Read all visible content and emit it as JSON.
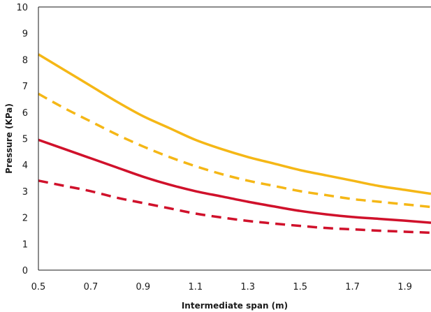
{
  "chart_data": {
    "type": "line",
    "title": "",
    "xlabel": "Intermediate span (m)",
    "ylabel": "Pressure (KPa)",
    "xlim": [
      0.5,
      2.0
    ],
    "ylim": [
      0,
      10
    ],
    "x_ticks": [
      "0.5",
      "0.7",
      "0.9",
      "1.1",
      "1.3",
      "1.5",
      "1.7",
      "1.9"
    ],
    "y_ticks": [
      "0",
      "1",
      "2",
      "3",
      "4",
      "5",
      "6",
      "7",
      "8",
      "9",
      "10"
    ],
    "grid": false,
    "series": [
      {
        "color": "#F5B716",
        "style": "solid",
        "x": [
          0.5,
          0.6,
          0.7,
          0.8,
          0.9,
          1.0,
          1.1,
          1.2,
          1.3,
          1.4,
          1.5,
          1.6,
          1.7,
          1.8,
          1.9,
          2.0
        ],
        "values": [
          8.2,
          7.6,
          7.0,
          6.4,
          5.85,
          5.4,
          4.95,
          4.6,
          4.3,
          4.05,
          3.8,
          3.6,
          3.4,
          3.2,
          3.05,
          2.9
        ]
      },
      {
        "color": "#F5B716",
        "style": "dashed",
        "x": [
          0.5,
          0.6,
          0.7,
          0.8,
          0.9,
          1.0,
          1.1,
          1.2,
          1.3,
          1.4,
          1.5,
          1.6,
          1.7,
          1.8,
          1.9,
          2.0
        ],
        "values": [
          6.7,
          6.15,
          5.65,
          5.15,
          4.7,
          4.3,
          3.95,
          3.65,
          3.4,
          3.2,
          3.0,
          2.85,
          2.7,
          2.6,
          2.5,
          2.4
        ]
      },
      {
        "color": "#D0112B",
        "style": "solid",
        "x": [
          0.5,
          0.6,
          0.7,
          0.8,
          0.9,
          1.0,
          1.1,
          1.2,
          1.3,
          1.4,
          1.5,
          1.6,
          1.7,
          1.8,
          1.9,
          2.0
        ],
        "values": [
          4.95,
          4.6,
          4.25,
          3.9,
          3.55,
          3.25,
          3.0,
          2.8,
          2.6,
          2.42,
          2.25,
          2.12,
          2.02,
          1.95,
          1.88,
          1.8
        ]
      },
      {
        "color": "#D0112B",
        "style": "dashed",
        "x": [
          0.5,
          0.6,
          0.7,
          0.8,
          0.9,
          1.0,
          1.1,
          1.2,
          1.3,
          1.4,
          1.5,
          1.6,
          1.7,
          1.8,
          1.9,
          2.0
        ],
        "values": [
          3.4,
          3.2,
          3.0,
          2.75,
          2.55,
          2.35,
          2.15,
          2.0,
          1.87,
          1.77,
          1.68,
          1.6,
          1.55,
          1.5,
          1.46,
          1.42
        ]
      }
    ]
  }
}
